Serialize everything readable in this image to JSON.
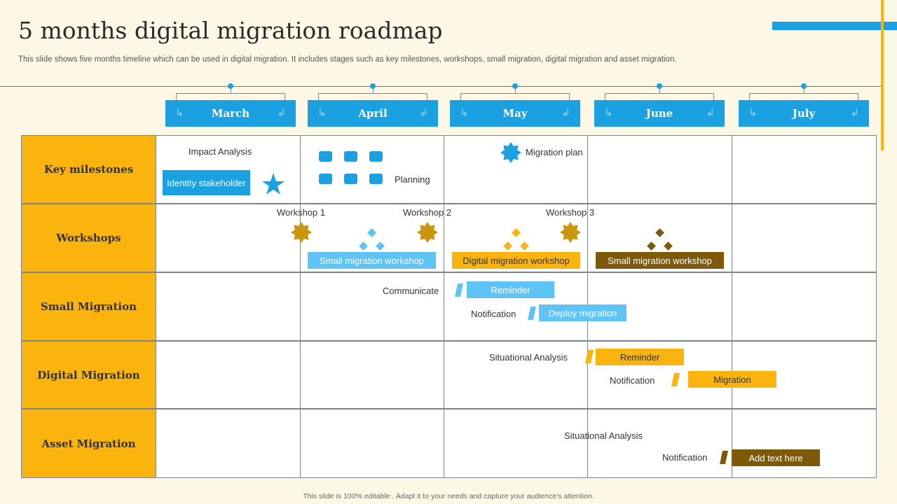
{
  "title": "5 months digital migration roadmap",
  "subtitle": "This slide shows five months timeline which can be used in digital migration. It includes stages such as key milestones, workshops, small migration, digital migration and asset migration.",
  "footer": "This slide is 100% editable . Adapt it to your needs and capture your audience’s attention.",
  "colors": {
    "blue": "#1ba1e2",
    "light_blue": "#5ec4f5",
    "yellow": "#fbb30e",
    "brown": "#7d5a0a",
    "gold": "#c9960e"
  },
  "months": [
    "March",
    "April",
    "May",
    "June",
    "July"
  ],
  "rows": [
    "Key milestones",
    "Workshops",
    "Small Migration",
    "Digital Migration",
    "Asset Migration"
  ],
  "key_milestones": {
    "impact_analysis": "Impact Analysis",
    "identity_stakeholder": "Identity stakeholder",
    "planning": "Planning",
    "migration_plan": "Migration plan"
  },
  "workshops": {
    "workshop1": "Workshop 1",
    "workshop2": "Workshop 2",
    "workshop3": "Workshop 3",
    "small_workshop_april": "Small migration workshop",
    "digital_workshop_may": "Digital migration workshop",
    "small_workshop_june": "Small migration workshop"
  },
  "small_migration": {
    "communicate": "Communicate",
    "reminder": "Reminder",
    "notification": "Notification",
    "deploy_migration": "Deploy migration"
  },
  "digital_migration": {
    "situational_analysis": "Situational Analysis",
    "reminder": "Reminder",
    "notification": "Notification",
    "migration": "Migration"
  },
  "asset_migration": {
    "situational_analysis": "Situational Analysis",
    "notification": "Notification",
    "add_text": "Add text here"
  }
}
